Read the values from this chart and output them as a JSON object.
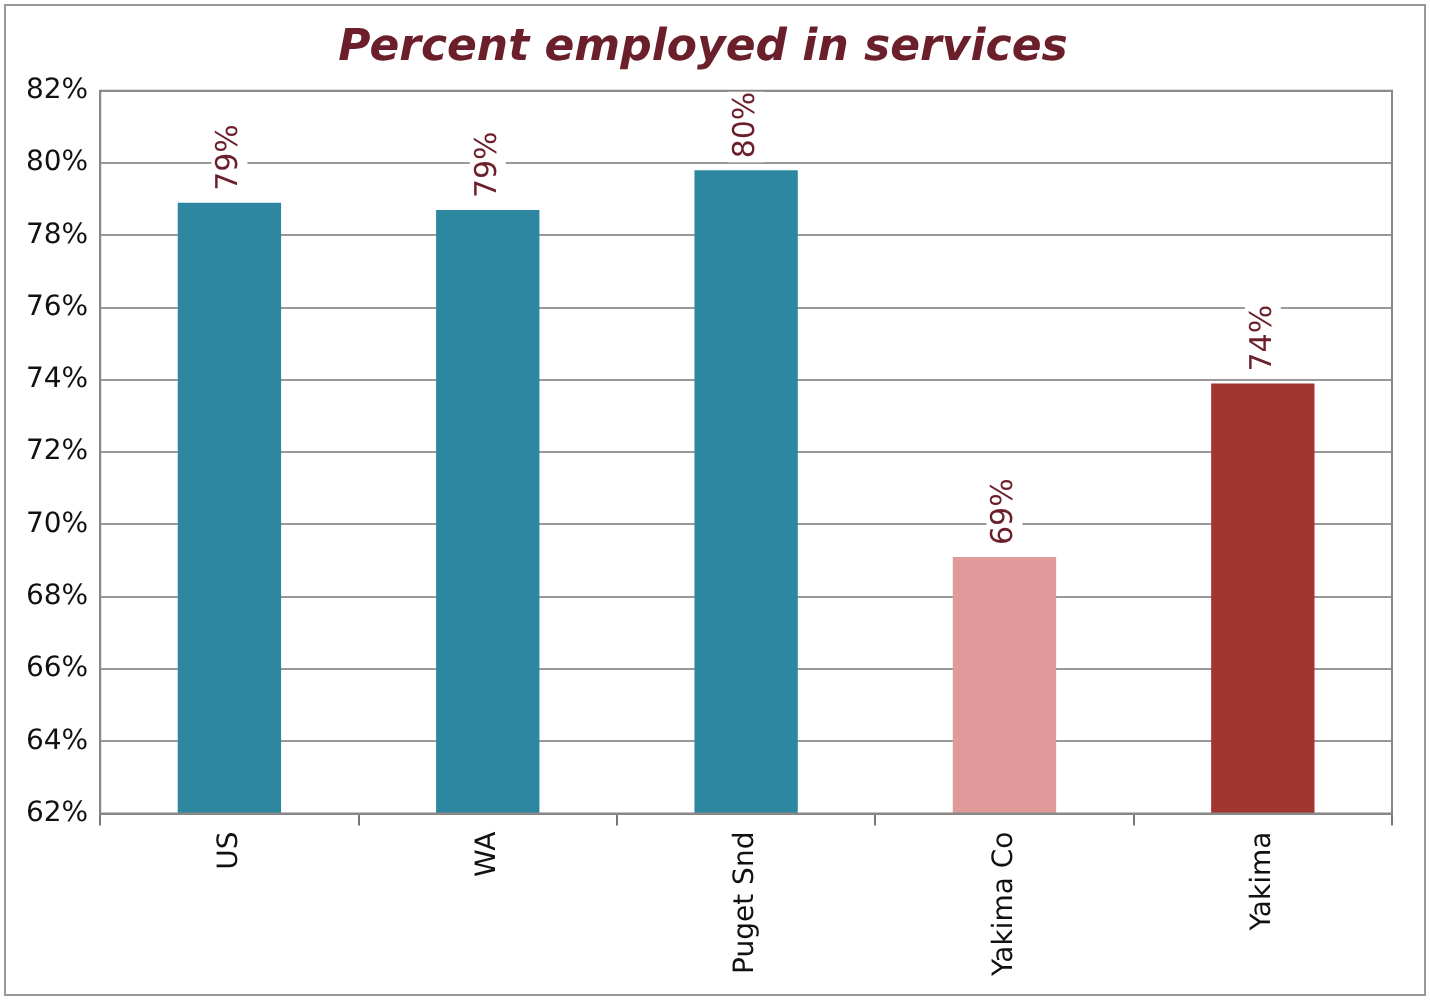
{
  "chart_data": {
    "type": "bar",
    "title": "Percent employed in services",
    "categories": [
      "US",
      "WA",
      "Puget Snd",
      "Yakima Co",
      "Yakima"
    ],
    "values": [
      78.9,
      78.7,
      79.8,
      69.1,
      73.9
    ],
    "colors": [
      "#2e87a0",
      "#2e87a0",
      "#2e87a0",
      "#e09a9a",
      "#a0362f"
    ],
    "value_labels": [
      "79%",
      "79%",
      "80%",
      "69%",
      "74%"
    ],
    "ylim": [
      62,
      82
    ],
    "yticks": [
      {
        "value": 62,
        "label": "62%"
      },
      {
        "value": 64,
        "label": "64%"
      },
      {
        "value": 66,
        "label": "66%"
      },
      {
        "value": 68,
        "label": "68%"
      },
      {
        "value": 70,
        "label": "70%"
      },
      {
        "value": 72,
        "label": "72%"
      },
      {
        "value": 74,
        "label": "74%"
      },
      {
        "value": 76,
        "label": "76%"
      },
      {
        "value": 78,
        "label": "78%"
      },
      {
        "value": 80,
        "label": "80%"
      },
      {
        "value": 82,
        "label": "82%"
      }
    ],
    "grid": "y",
    "legend": false
  }
}
